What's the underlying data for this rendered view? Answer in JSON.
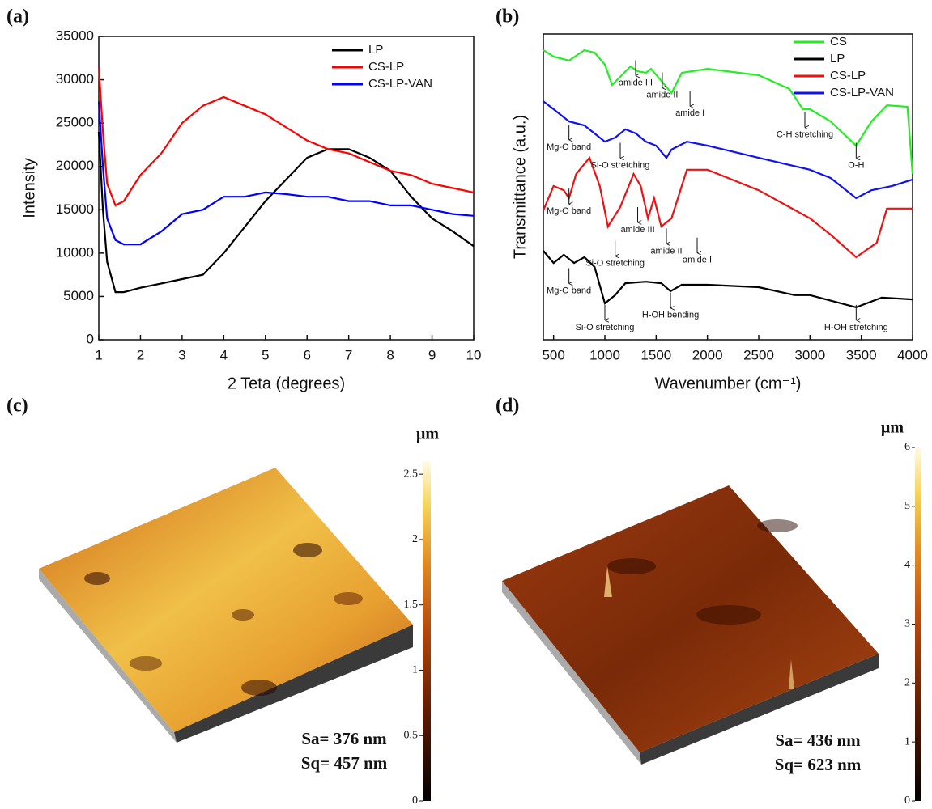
{
  "chart_data": [
    {
      "type": "line",
      "label": "(a)",
      "xlabel": "2 Teta (degrees)",
      "ylabel": "Intensity",
      "xlim": [
        1,
        10
      ],
      "xticks": [
        1,
        2,
        3,
        4,
        5,
        6,
        7,
        8,
        9,
        10
      ],
      "ylim": [
        0,
        35000
      ],
      "yticks": [
        0,
        5000,
        10000,
        15000,
        20000,
        25000,
        30000,
        35000
      ],
      "x": [
        1,
        1.1,
        1.2,
        1.4,
        1.6,
        2,
        2.5,
        3,
        3.5,
        4,
        4.5,
        5,
        5.5,
        6,
        6.5,
        7,
        7.5,
        8,
        8.5,
        9,
        9.5,
        10
      ],
      "series": [
        {
          "name": "LP",
          "color": "#000000",
          "values": [
            24000,
            15000,
            9000,
            5500,
            5500,
            6000,
            6500,
            7000,
            7500,
            10000,
            13000,
            16000,
            18500,
            21000,
            22000,
            22000,
            21000,
            19500,
            16500,
            14000,
            12500,
            10800
          ]
        },
        {
          "name": "CS-LP",
          "color": "#ff0000",
          "values": [
            31500,
            24000,
            18000,
            15500,
            16000,
            19000,
            21500,
            25000,
            27000,
            28000,
            27000,
            26000,
            24500,
            23000,
            22000,
            21500,
            20500,
            19500,
            19000,
            18000,
            17500,
            17000
          ]
        },
        {
          "name": "CS-LP-VAN",
          "color": "#0000ff",
          "values": [
            27500,
            20000,
            14000,
            11500,
            11000,
            11000,
            12500,
            14500,
            15000,
            16500,
            16500,
            17000,
            16800,
            16500,
            16500,
            16000,
            16000,
            15500,
            15500,
            15000,
            14500,
            14300
          ]
        }
      ]
    },
    {
      "type": "line",
      "label": "(b)",
      "xlabel": "Wavenumber (cm⁻¹)",
      "ylabel": "Transmittance (a.u.)",
      "xlim": [
        400,
        4000
      ],
      "xticks": [
        500,
        1000,
        1500,
        2000,
        2500,
        3000,
        3500,
        4000
      ],
      "ylim": [
        0,
        100
      ],
      "series": [
        {
          "name": "CS",
          "color": "#22ee22",
          "x": [
            400,
            500,
            650,
            800,
            900,
            1000,
            1070,
            1150,
            1250,
            1320,
            1400,
            1450,
            1550,
            1650,
            1750,
            2000,
            2500,
            2800,
            2930,
            3000,
            3200,
            3450,
            3600,
            3750,
            3950,
            4000
          ],
          "values": [
            94.7,
            92.6,
            91.3,
            94.7,
            93.9,
            90,
            83.3,
            86,
            89.4,
            87.8,
            87.3,
            88.6,
            84.7,
            80.7,
            87.3,
            88.6,
            86.5,
            82,
            75.4,
            75.4,
            71.4,
            63.5,
            71.4,
            76.7,
            76.2,
            54.2
          ]
        },
        {
          "name": "LP",
          "color": "#000000",
          "x": [
            400,
            500,
            600,
            700,
            800,
            900,
            1000,
            1100,
            1200,
            1400,
            1550,
            1640,
            1750,
            2000,
            2500,
            2850,
            3000,
            3450,
            3700,
            4000
          ],
          "values": [
            29.1,
            25.1,
            27.8,
            25.1,
            27,
            23.8,
            11.9,
            14.6,
            18.5,
            19,
            18.5,
            15.9,
            18,
            18,
            17.2,
            14.6,
            14.6,
            10.6,
            13.8,
            13.2
          ]
        },
        {
          "name": "CS-LP",
          "color": "#ee1111",
          "x": [
            400,
            500,
            600,
            650,
            720,
            850,
            950,
            1030,
            1150,
            1280,
            1350,
            1420,
            1480,
            1550,
            1650,
            1800,
            2000,
            2500,
            3000,
            3200,
            3450,
            3650,
            3750,
            4000
          ],
          "values": [
            42.3,
            50.3,
            48.9,
            46.3,
            54.2,
            59.5,
            50.3,
            37,
            43.4,
            54.2,
            50.3,
            39.7,
            46.3,
            37,
            39.7,
            55.6,
            55.6,
            48.9,
            39.7,
            34.4,
            27,
            31.7,
            42.9,
            42.9
          ]
        },
        {
          "name": "CS-LP-VAN",
          "color": "#1111ee",
          "x": [
            400,
            500,
            650,
            800,
            1000,
            1100,
            1200,
            1300,
            1400,
            1500,
            1600,
            1650,
            1800,
            2000,
            2500,
            3000,
            3200,
            3450,
            3600,
            3800,
            4000
          ],
          "values": [
            78,
            75.4,
            71.4,
            70.1,
            64.8,
            66.1,
            68.8,
            67.5,
            64.8,
            63.5,
            59.5,
            62.2,
            64.8,
            63.5,
            59.5,
            55.6,
            52.9,
            46.3,
            48.9,
            50.3,
            52.4
          ]
        }
      ],
      "annotations": [
        {
          "text": "amide III",
          "x": 1300,
          "y": 84
        },
        {
          "text": "amide II",
          "x": 1560,
          "y": 80
        },
        {
          "text": "amide I",
          "x": 1830,
          "y": 74
        },
        {
          "text": "C-H stretching",
          "x": 2950,
          "y": 67
        },
        {
          "text": "O-H",
          "x": 3450,
          "y": 57
        },
        {
          "text": "Mg-O band",
          "x": 650,
          "y": 63
        },
        {
          "text": "Si-O stretching",
          "x": 1150,
          "y": 57
        },
        {
          "text": "Mg-O band",
          "x": 650,
          "y": 42
        },
        {
          "text": "Si-O stretching",
          "x": 1100,
          "y": 25
        },
        {
          "text": "amide III",
          "x": 1320,
          "y": 36
        },
        {
          "text": "amide II",
          "x": 1600,
          "y": 29
        },
        {
          "text": "amide I",
          "x": 1900,
          "y": 26
        },
        {
          "text": "Mg-O band",
          "x": 650,
          "y": 16
        },
        {
          "text": "Si-O stretching",
          "x": 1000,
          "y": 4
        },
        {
          "text": "H-OH bending",
          "x": 1640,
          "y": 8
        },
        {
          "text": "H-OH stretching",
          "x": 3450,
          "y": 4
        }
      ]
    },
    {
      "type": "surface",
      "label": "(c)",
      "colorbar_label": "µm",
      "clim": [
        0,
        2.6
      ],
      "cticks": [
        0,
        0.5,
        1,
        1.5,
        2,
        2.5
      ],
      "annotations": [
        "Sa= 376 nm",
        "Sq= 457 nm"
      ]
    },
    {
      "type": "surface",
      "label": "(d)",
      "colorbar_label": "µm",
      "clim": [
        0,
        6
      ],
      "cticks": [
        0,
        1,
        2,
        3,
        4,
        5,
        6
      ],
      "annotations": [
        "Sa= 436 nm",
        "Sq= 623 nm"
      ]
    }
  ]
}
